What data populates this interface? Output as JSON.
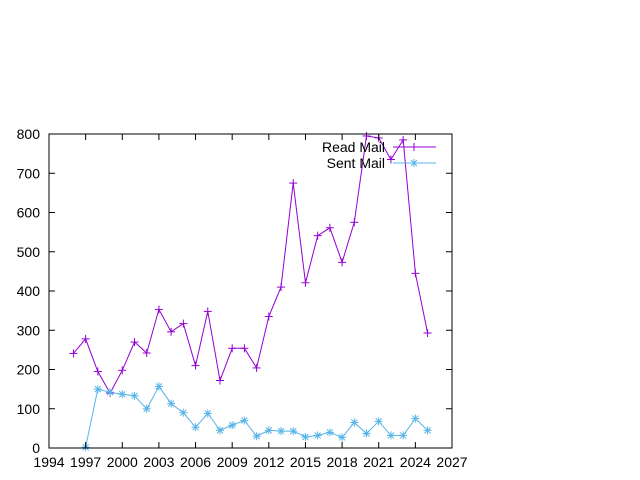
{
  "chart_data": {
    "type": "line",
    "title": "",
    "xlabel": "",
    "ylabel": "",
    "xlim": [
      1994,
      2027
    ],
    "ylim": [
      0,
      800
    ],
    "xticks": [
      1994,
      1997,
      2000,
      2003,
      2006,
      2009,
      2012,
      2015,
      2018,
      2021,
      2024,
      2027
    ],
    "yticks": [
      0,
      100,
      200,
      300,
      400,
      500,
      600,
      700,
      800
    ],
    "grid": false,
    "legend_position": "top-right",
    "series": [
      {
        "name": "Read Mail",
        "color": "#9400D3",
        "marker": "plus",
        "x": [
          1996,
          1997,
          1998,
          1999,
          2000,
          2001,
          2002,
          2003,
          2004,
          2005,
          2006,
          2007,
          2008,
          2009,
          2010,
          2011,
          2012,
          2013,
          2014,
          2015,
          2016,
          2017,
          2018,
          2019,
          2020,
          2021,
          2022,
          2023,
          2024,
          2025
        ],
        "values": [
          241,
          278,
          195,
          140,
          198,
          270,
          242,
          353,
          296,
          317,
          210,
          348,
          172,
          254,
          254,
          204,
          335,
          410,
          675,
          421,
          541,
          561,
          473,
          575,
          795,
          790,
          735,
          785,
          445,
          293
        ]
      },
      {
        "name": "Sent Mail",
        "color": "#56B4E9",
        "marker": "star",
        "x": [
          1997,
          1998,
          1999,
          2000,
          2001,
          2002,
          2003,
          2004,
          2005,
          2006,
          2007,
          2008,
          2009,
          2010,
          2011,
          2012,
          2013,
          2014,
          2015,
          2016,
          2017,
          2018,
          2019,
          2020,
          2021,
          2022,
          2023,
          2024,
          2025
        ],
        "values": [
          2,
          150,
          142,
          137,
          133,
          100,
          157,
          113,
          90,
          53,
          88,
          45,
          58,
          70,
          30,
          45,
          43,
          43,
          28,
          32,
          40,
          27,
          65,
          37,
          68,
          32,
          32,
          75,
          45
        ]
      }
    ]
  }
}
